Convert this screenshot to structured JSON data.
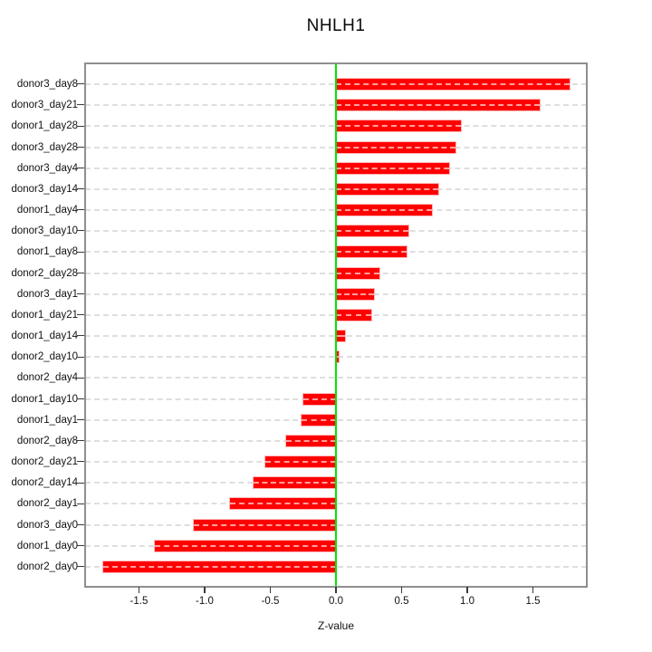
{
  "chart_data": {
    "type": "bar",
    "orientation": "horizontal",
    "title": "NHLH1",
    "xlabel": "Z-value",
    "ylabel": "",
    "legend": "none",
    "grid": "horizontal-dashed",
    "categories": [
      "donor3_day8",
      "donor3_day21",
      "donor1_day28",
      "donor3_day28",
      "donor3_day4",
      "donor3_day14",
      "donor1_day4",
      "donor3_day10",
      "donor1_day8",
      "donor2_day28",
      "donor3_day1",
      "donor1_day21",
      "donor1_day14",
      "donor2_day10",
      "donor2_day4",
      "donor1_day10",
      "donor1_day1",
      "donor2_day8",
      "donor2_day21",
      "donor2_day14",
      "donor2_day1",
      "donor3_day0",
      "donor1_day0",
      "donor2_day0"
    ],
    "values": [
      1.78,
      1.55,
      0.95,
      0.91,
      0.86,
      0.78,
      0.73,
      0.55,
      0.54,
      0.33,
      0.29,
      0.27,
      0.07,
      0.02,
      0.0,
      -0.25,
      -0.26,
      -0.38,
      -0.54,
      -0.63,
      -0.81,
      -1.08,
      -1.38,
      -1.77
    ],
    "x_ticks": [
      -1.5,
      -1.0,
      -0.5,
      0.0,
      0.5,
      1.0,
      1.5
    ],
    "x_tick_labels": [
      "-1.5",
      "-1.0",
      "-0.5",
      "0.0",
      "0.5",
      "1.0",
      "1.5"
    ],
    "xlim": [
      -1.91,
      1.91
    ],
    "reference_line_x": 0,
    "colors": {
      "bar": "#ff0000",
      "bar_edge": "#ffb8b8",
      "bar_grid_overlay": "#ff9f9f",
      "reference_line": "#00e400",
      "grid_line": "#dedede",
      "box_border": "#8f8f8f",
      "text": "#000000",
      "background": "#ffffff"
    }
  }
}
